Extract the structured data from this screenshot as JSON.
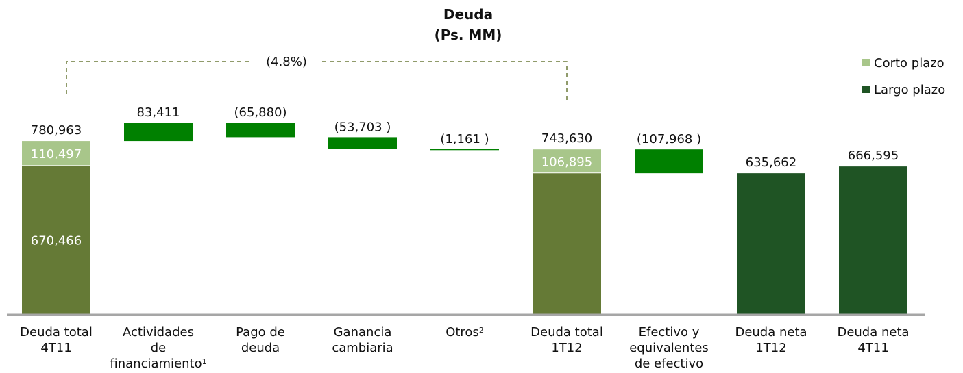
{
  "chart_data": {
    "type": "waterfall",
    "title": "Deuda",
    "subtitle": "(Ps. MM)",
    "annotation": "(4.8%)",
    "categories": [
      "Deuda total\n4T11",
      "Actividades\nde\nfinanciamiento",
      "Pago de\ndeuda",
      "Ganancia\ncambiaria",
      "Otros",
      "Deuda total\n1T12",
      "Efectivo y\nequivalentes\nde efectivo",
      "Deuda neta\n1T12",
      "Deuda neta\n4T11"
    ],
    "category_notes": [
      null,
      "1",
      null,
      null,
      "2",
      null,
      null,
      null,
      null
    ],
    "series": [
      {
        "name": "Corto plazo",
        "color": "#a8c68a",
        "values": [
          110497,
          null,
          null,
          null,
          null,
          106895,
          null,
          null,
          null
        ],
        "value_labels": [
          "110,497",
          null,
          null,
          null,
          null,
          "106,895",
          null,
          null,
          null
        ]
      },
      {
        "name": "Largo plazo",
        "color": "#1f5424",
        "colors": [
          "#657a36",
          null,
          null,
          null,
          null,
          "#657a36",
          null,
          "#1f5424",
          "#1f5424"
        ],
        "values": [
          670466,
          null,
          null,
          null,
          null,
          636735,
          null,
          635662,
          666595
        ],
        "value_labels": [
          "670,466",
          null,
          null,
          null,
          null,
          null,
          null,
          null,
          null
        ]
      }
    ],
    "changes": {
      "color": "#008000",
      "values": [
        null,
        83411,
        -65880,
        -53703,
        -1161,
        null,
        -107968,
        null,
        null
      ],
      "value_labels": [
        null,
        "83,411",
        "(65,880)",
        "(53,703 )",
        "(1,161 )",
        null,
        "(107,968 )",
        null,
        null
      ]
    },
    "totals": {
      "values": [
        780963,
        null,
        null,
        null,
        null,
        743630,
        null,
        635662,
        666595
      ],
      "value_labels": [
        "780,963",
        null,
        null,
        null,
        null,
        "743,630",
        null,
        "635,662",
        "666,595"
      ]
    },
    "ylim": [
      0,
      1300000
    ],
    "legend": "top-right"
  }
}
